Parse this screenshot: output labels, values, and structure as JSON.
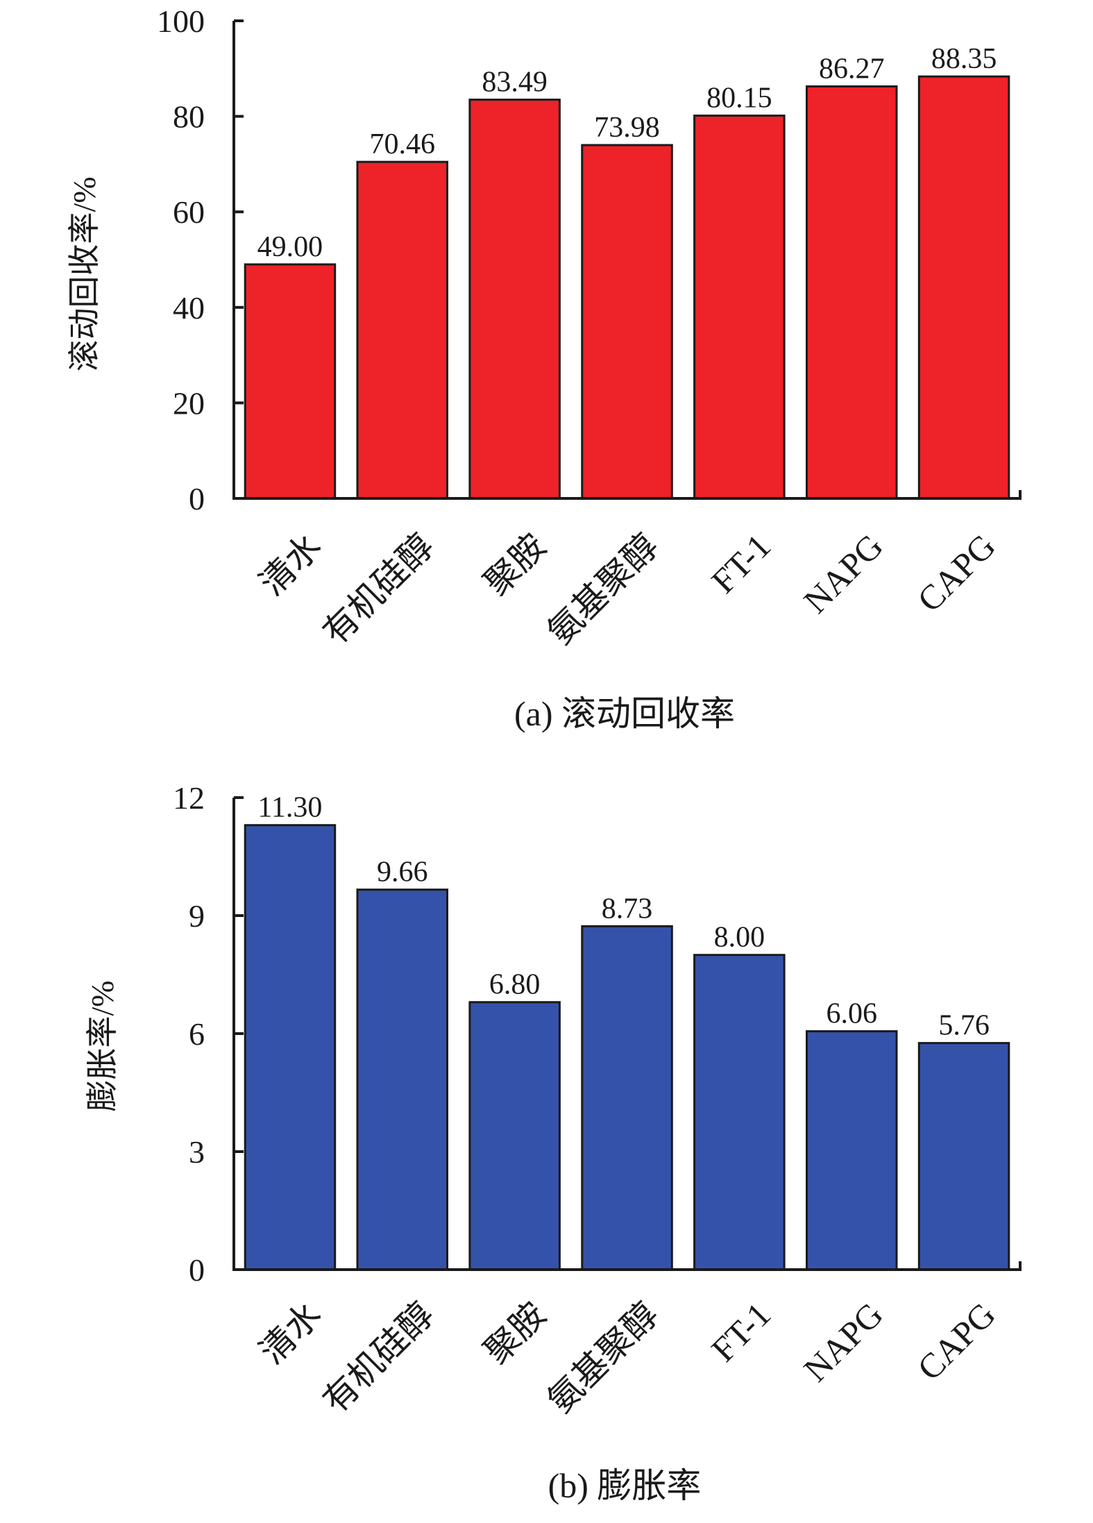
{
  "chart_data": [
    {
      "type": "bar",
      "panel": "a",
      "caption": "(a) 滚动回收率",
      "ylabel": "滚动回收率/%",
      "xlabel": "",
      "categories": [
        "清水",
        "有机硅醇",
        "聚胺",
        "氨基聚醇",
        "FT-1",
        "NAPG",
        "CAPG"
      ],
      "values": [
        49.0,
        70.46,
        83.49,
        73.98,
        80.15,
        86.27,
        88.35
      ],
      "value_labels": [
        "49.00",
        "70.46",
        "83.49",
        "73.98",
        "80.15",
        "86.27",
        "88.35"
      ],
      "ylim": [
        0,
        100
      ],
      "yticks": [
        0,
        20,
        40,
        60,
        80,
        100
      ],
      "ytick_labels": [
        "0",
        "20",
        "40",
        "60",
        "80",
        "100"
      ],
      "bar_color": "#ee2229",
      "grid": false,
      "legend": "none"
    },
    {
      "type": "bar",
      "panel": "b",
      "caption": "(b) 膨胀率",
      "ylabel": "膨胀率/%",
      "xlabel": "",
      "categories": [
        "清水",
        "有机硅醇",
        "聚胺",
        "氨基聚醇",
        "FT-1",
        "NAPG",
        "CAPG"
      ],
      "values": [
        11.3,
        9.66,
        6.8,
        8.73,
        8.0,
        6.06,
        5.76
      ],
      "value_labels": [
        "11.30",
        "9.66",
        "6.80",
        "8.73",
        "8.00",
        "6.06",
        "5.76"
      ],
      "ylim": [
        0,
        12
      ],
      "yticks": [
        0,
        3,
        6,
        9,
        12
      ],
      "ytick_labels": [
        "0",
        "3",
        "6",
        "9",
        "12"
      ],
      "bar_color": "#3552ab",
      "grid": false,
      "legend": "none"
    }
  ]
}
